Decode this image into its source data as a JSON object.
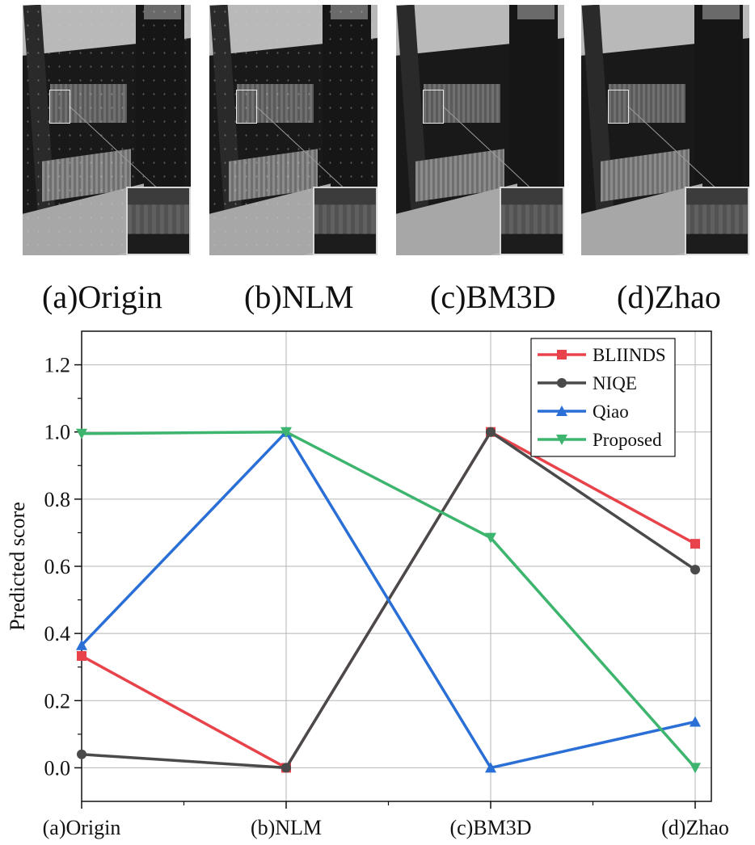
{
  "figure": {
    "panels": [
      {
        "caption": "(a)Origin",
        "image": "xray-origin-noisy"
      },
      {
        "caption": "(b)NLM",
        "image": "xray-nlm-denoised"
      },
      {
        "caption": "(c)BM3D",
        "image": "xray-bm3d-denoised"
      },
      {
        "caption": "(d)Zhao",
        "image": "xray-zhao-denoised"
      }
    ]
  },
  "chart_data": {
    "type": "line",
    "title": "",
    "xlabel": "",
    "ylabel": "Predicted score",
    "categories": [
      "(a)Origin",
      "(b)NLM",
      "(c)BM3D",
      "(d)Zhao"
    ],
    "ylim": [
      -0.1,
      1.3
    ],
    "yticks": [
      "0.0",
      "0.2",
      "0.4",
      "0.6",
      "0.8",
      "1.0",
      "1.2"
    ],
    "grid": true,
    "legend_position": "top-right",
    "series": [
      {
        "name": "BLIINDS",
        "color": "#e8434a",
        "marker": "square",
        "values": [
          0.333,
          0.0,
          1.0,
          0.667
        ]
      },
      {
        "name": "NIQE",
        "color": "#4a4a4a",
        "marker": "circle",
        "values": [
          0.04,
          0.0,
          1.0,
          0.59
        ]
      },
      {
        "name": "Qiao",
        "color": "#2a6fd6",
        "marker": "triangle-up",
        "values": [
          0.365,
          1.0,
          0.0,
          0.137
        ]
      },
      {
        "name": "Proposed",
        "color": "#3db56e",
        "marker": "triangle-down",
        "values": [
          0.995,
          1.0,
          0.685,
          0.0
        ]
      }
    ]
  }
}
